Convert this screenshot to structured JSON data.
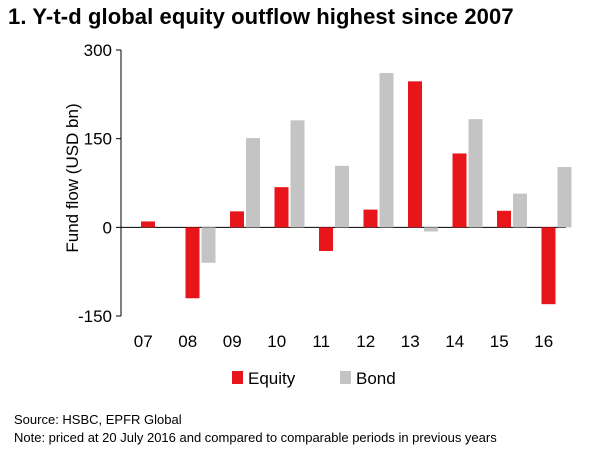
{
  "chart_data": {
    "type": "bar",
    "title": "1. Y-t-d global equity outflow highest since 2007",
    "ylabel": "Fund flow (USD bn)",
    "xlabel": "",
    "categories": [
      "07",
      "08",
      "09",
      "10",
      "11",
      "12",
      "13",
      "14",
      "15",
      "16"
    ],
    "series": [
      {
        "name": "Equity",
        "color": "#e8161b",
        "values": [
          10,
          -120,
          27,
          68,
          -40,
          30,
          247,
          125,
          28,
          -130
        ]
      },
      {
        "name": "Bond",
        "color": "#c4c4c4",
        "values": [
          0,
          -60,
          151,
          181,
          104,
          261,
          -7,
          183,
          57,
          102
        ]
      }
    ],
    "ylim": [
      -150,
      300
    ],
    "yticks": [
      "300",
      "150",
      "0",
      "-150"
    ],
    "ytick_values": [
      300,
      150,
      0,
      -150
    ],
    "grid": false,
    "legend_position": "bottom-center"
  },
  "source": "Source: HSBC, EPFR Global",
  "note": "Note: priced at 20 July 2016 and compared to comparable periods in previous years"
}
